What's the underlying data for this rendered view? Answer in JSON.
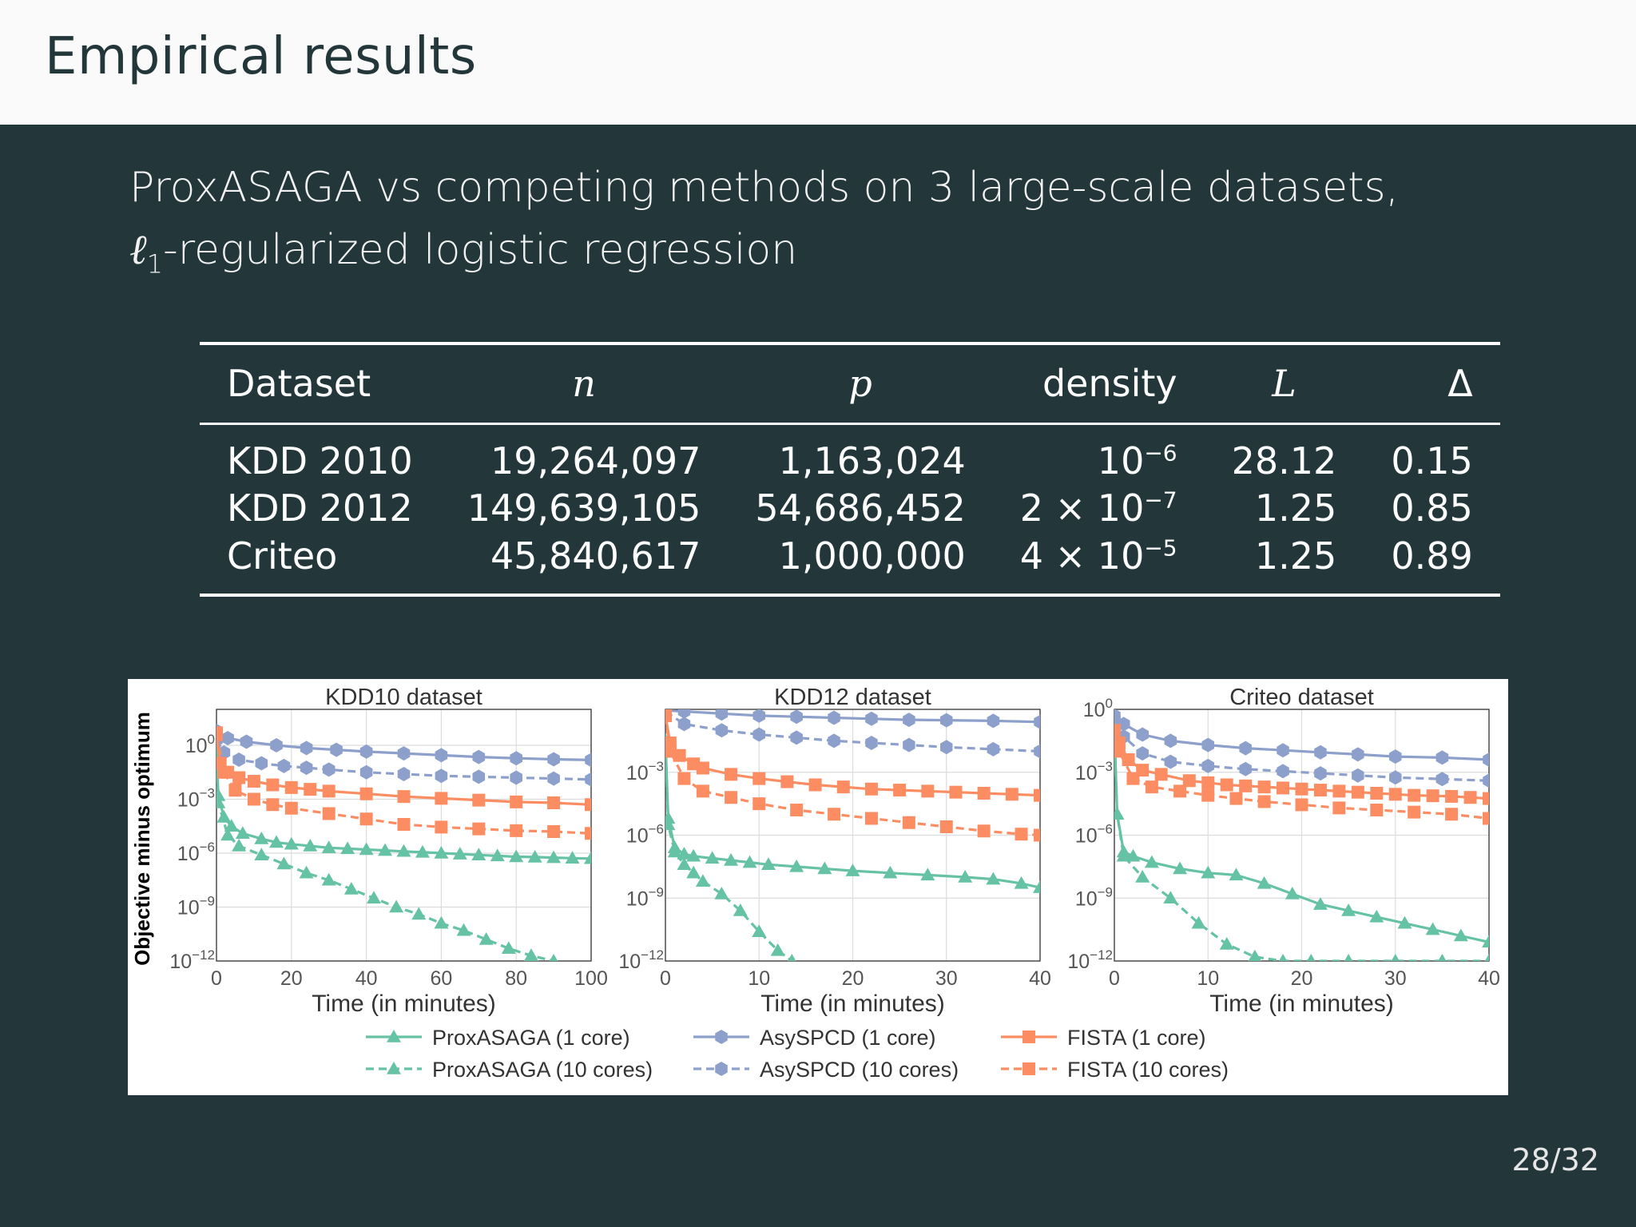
{
  "slide": {
    "title": "Empirical results",
    "subtitle_line1": "ProxASAGA vs competing methods on 3 large-scale datasets,",
    "subtitle_ell": "ℓ",
    "subtitle_sub": "1",
    "subtitle_line2_rest": "-regularized logistic regression",
    "page_number": "28/32"
  },
  "table": {
    "headers": [
      "Dataset",
      "n",
      "p",
      "density",
      "L",
      "Δ"
    ],
    "rows": [
      {
        "dataset": "KDD 2010",
        "n": "19,264,097",
        "p": "1,163,024",
        "density_base": "10",
        "density_exp": "−6",
        "L": "28.12",
        "delta": "0.15"
      },
      {
        "dataset": "KDD 2012",
        "n": "149,639,105",
        "p": "54,686,452",
        "density_base": "2 × 10",
        "density_exp": "−7",
        "L": "1.25",
        "delta": "0.85"
      },
      {
        "dataset": "Criteo",
        "n": "45,840,617",
        "p": "1,000,000",
        "density_base": "4 × 10",
        "density_exp": "−5",
        "L": "1.25",
        "delta": "0.89"
      }
    ]
  },
  "chart_data": [
    {
      "type": "line",
      "title": "KDD10 dataset",
      "xlabel": "Time (in minutes)",
      "ylabel": "Objective minus optimum",
      "xlim": [
        0,
        100
      ],
      "x_ticks": [
        "0",
        "20",
        "40",
        "60",
        "80",
        "100"
      ],
      "ylim_log10": [
        -12,
        2
      ],
      "y_scale": "log",
      "y_ticks": [
        {
          "base": "10",
          "exp": "0",
          "v": 0
        },
        {
          "base": "10",
          "exp": "−3",
          "v": -3
        },
        {
          "base": "10",
          "exp": "−6",
          "v": -6
        },
        {
          "base": "10",
          "exp": "−9",
          "v": -9
        },
        {
          "base": "10",
          "exp": "−12",
          "v": -12
        }
      ],
      "grid": true,
      "series": [
        {
          "name": "ProxASAGA (1 core)",
          "color": "#66c2a5",
          "dash": false,
          "marker": "triangle",
          "x": [
            0,
            0.5,
            2,
            4,
            7,
            12,
            16,
            20,
            25,
            30,
            35,
            40,
            45,
            50,
            55,
            60,
            65,
            70,
            75,
            80,
            85,
            90,
            95,
            100
          ],
          "log10_y": [
            -0.2,
            -2.8,
            -4.0,
            -4.5,
            -4.9,
            -5.2,
            -5.4,
            -5.5,
            -5.6,
            -5.7,
            -5.75,
            -5.8,
            -5.85,
            -5.9,
            -5.95,
            -6.0,
            -6.05,
            -6.1,
            -6.15,
            -6.2,
            -6.22,
            -6.25,
            -6.28,
            -6.3
          ]
        },
        {
          "name": "ProxASAGA (10 cores)",
          "color": "#66c2a5",
          "dash": true,
          "marker": "triangle",
          "x": [
            0,
            0.5,
            3,
            6,
            12,
            18,
            24,
            30,
            36,
            42,
            48,
            54,
            60,
            66,
            72,
            78,
            84,
            90
          ],
          "log10_y": [
            -0.2,
            -3.2,
            -5.0,
            -5.6,
            -6.1,
            -6.6,
            -7.1,
            -7.5,
            -8.0,
            -8.5,
            -9.0,
            -9.4,
            -9.9,
            -10.3,
            -10.8,
            -11.3,
            -11.7,
            -12.0
          ]
        },
        {
          "name": "AsySPCD (1 core)",
          "color": "#8da0cb",
          "dash": false,
          "marker": "hexagon",
          "x": [
            0,
            3,
            8,
            16,
            24,
            32,
            40,
            50,
            60,
            70,
            80,
            90,
            100
          ],
          "log10_y": [
            0.8,
            0.4,
            0.2,
            0.0,
            -0.15,
            -0.25,
            -0.35,
            -0.45,
            -0.55,
            -0.65,
            -0.72,
            -0.78,
            -0.82
          ]
        },
        {
          "name": "AsySPCD (10 cores)",
          "color": "#8da0cb",
          "dash": true,
          "marker": "hexagon",
          "x": [
            0,
            2,
            6,
            12,
            18,
            24,
            30,
            40,
            50,
            60,
            70,
            80,
            90,
            100
          ],
          "log10_y": [
            0.3,
            -0.4,
            -0.8,
            -1.0,
            -1.15,
            -1.25,
            -1.35,
            -1.5,
            -1.6,
            -1.7,
            -1.75,
            -1.8,
            -1.85,
            -1.9
          ]
        },
        {
          "name": "FISTA (1 core)",
          "color": "#fc8d62",
          "dash": false,
          "marker": "square",
          "x": [
            0,
            1,
            3,
            6,
            10,
            15,
            20,
            25,
            30,
            40,
            50,
            60,
            70,
            80,
            90,
            100
          ],
          "log10_y": [
            0.7,
            -1.0,
            -1.5,
            -1.8,
            -2.0,
            -2.2,
            -2.35,
            -2.45,
            -2.55,
            -2.7,
            -2.85,
            -2.95,
            -3.05,
            -3.15,
            -3.2,
            -3.3
          ]
        },
        {
          "name": "FISTA (10 cores)",
          "color": "#fc8d62",
          "dash": true,
          "marker": "square",
          "x": [
            0,
            2,
            5,
            10,
            15,
            20,
            30,
            40,
            50,
            60,
            70,
            80,
            90,
            100
          ],
          "log10_y": [
            0.6,
            -1.5,
            -2.5,
            -3.0,
            -3.3,
            -3.5,
            -3.8,
            -4.1,
            -4.4,
            -4.55,
            -4.65,
            -4.75,
            -4.8,
            -4.9
          ]
        }
      ]
    },
    {
      "type": "line",
      "title": "KDD12 dataset",
      "xlabel": "Time (in minutes)",
      "xlim": [
        0,
        40
      ],
      "x_ticks": [
        "0",
        "10",
        "20",
        "30",
        "40"
      ],
      "ylim_log10": [
        -12,
        0
      ],
      "y_scale": "log",
      "y_ticks": [
        {
          "base": "10",
          "exp": "−3",
          "v": -3
        },
        {
          "base": "10",
          "exp": "−6",
          "v": -6
        },
        {
          "base": "10",
          "exp": "−9",
          "v": -9
        },
        {
          "base": "10",
          "exp": "−12",
          "v": -12
        }
      ],
      "grid": true,
      "series": [
        {
          "name": "ProxASAGA (1 core)",
          "color": "#66c2a5",
          "dash": false,
          "marker": "triangle",
          "x": [
            0,
            0.3,
            1,
            2,
            3,
            5,
            7,
            9,
            11,
            14,
            17,
            20,
            24,
            28,
            32,
            35,
            38,
            40
          ],
          "log10_y": [
            -1.5,
            -5.2,
            -6.6,
            -6.9,
            -7.0,
            -7.1,
            -7.2,
            -7.3,
            -7.4,
            -7.5,
            -7.6,
            -7.7,
            -7.8,
            -7.9,
            -8.0,
            -8.1,
            -8.3,
            -8.5
          ]
        },
        {
          "name": "ProxASAGA (10 cores)",
          "color": "#66c2a5",
          "dash": true,
          "marker": "triangle",
          "x": [
            0,
            0.3,
            1,
            2,
            3,
            4,
            6,
            8,
            10,
            12,
            13.5
          ],
          "log10_y": [
            -1.5,
            -5.5,
            -6.8,
            -7.4,
            -7.8,
            -8.2,
            -8.8,
            -9.6,
            -10.6,
            -11.5,
            -12.0
          ]
        },
        {
          "name": "AsySPCD (1 core)",
          "color": "#8da0cb",
          "dash": false,
          "marker": "hexagon",
          "x": [
            0,
            2,
            6,
            10,
            14,
            18,
            22,
            26,
            30,
            35,
            40
          ],
          "log10_y": [
            -0.05,
            -0.1,
            -0.2,
            -0.3,
            -0.35,
            -0.4,
            -0.45,
            -0.5,
            -0.52,
            -0.55,
            -0.6
          ]
        },
        {
          "name": "AsySPCD (10 cores)",
          "color": "#8da0cb",
          "dash": true,
          "marker": "hexagon",
          "x": [
            0,
            2,
            6,
            10,
            14,
            18,
            22,
            26,
            30,
            35,
            40
          ],
          "log10_y": [
            -0.1,
            -0.7,
            -1.0,
            -1.2,
            -1.35,
            -1.5,
            -1.6,
            -1.7,
            -1.8,
            -1.9,
            -2.0
          ]
        },
        {
          "name": "FISTA (1 core)",
          "color": "#fc8d62",
          "dash": false,
          "marker": "square",
          "x": [
            0,
            0.5,
            1.5,
            3,
            4,
            7,
            10,
            13,
            16,
            19,
            22,
            25,
            28,
            31,
            34,
            37,
            40
          ],
          "log10_y": [
            -0.3,
            -1.6,
            -2.2,
            -2.6,
            -2.8,
            -3.1,
            -3.3,
            -3.45,
            -3.6,
            -3.7,
            -3.8,
            -3.85,
            -3.9,
            -3.95,
            -4.0,
            -4.05,
            -4.1
          ]
        },
        {
          "name": "FISTA (10 cores)",
          "color": "#fc8d62",
          "dash": true,
          "marker": "square",
          "x": [
            0,
            0.5,
            2,
            4,
            7,
            10,
            14,
            18,
            22,
            26,
            30,
            34,
            38,
            40
          ],
          "log10_y": [
            -0.3,
            -2.0,
            -3.3,
            -3.9,
            -4.2,
            -4.5,
            -4.8,
            -5.0,
            -5.2,
            -5.4,
            -5.6,
            -5.8,
            -5.95,
            -6.0
          ]
        }
      ]
    },
    {
      "type": "line",
      "title": "Criteo dataset",
      "xlabel": "Time (in minutes)",
      "xlim": [
        0,
        40
      ],
      "x_ticks": [
        "0",
        "10",
        "20",
        "30",
        "40"
      ],
      "ylim_log10": [
        -12,
        0
      ],
      "y_scale": "log",
      "y_ticks": [
        {
          "base": "10",
          "exp": "0",
          "v": 0
        },
        {
          "base": "10",
          "exp": "−3",
          "v": -3
        },
        {
          "base": "10",
          "exp": "−6",
          "v": -6
        },
        {
          "base": "10",
          "exp": "−9",
          "v": -9
        },
        {
          "base": "10",
          "exp": "−12",
          "v": -12
        }
      ],
      "grid": true,
      "series": [
        {
          "name": "ProxASAGA (1 core)",
          "color": "#66c2a5",
          "dash": false,
          "marker": "triangle",
          "x": [
            0,
            0.3,
            1,
            2,
            4,
            7,
            10,
            13,
            16,
            19,
            22,
            25,
            28,
            31,
            34,
            37,
            40
          ],
          "log10_y": [
            -1.0,
            -5.0,
            -6.8,
            -7.0,
            -7.3,
            -7.6,
            -7.8,
            -7.9,
            -8.3,
            -8.8,
            -9.3,
            -9.6,
            -9.9,
            -10.2,
            -10.5,
            -10.8,
            -11.1
          ]
        },
        {
          "name": "ProxASAGA (10 cores)",
          "color": "#66c2a5",
          "dash": true,
          "marker": "triangle",
          "x": [
            0,
            0.3,
            1,
            3,
            6,
            9,
            12,
            15,
            18,
            21,
            25,
            30,
            35,
            40
          ],
          "log10_y": [
            -1.0,
            -5.0,
            -7.0,
            -8.0,
            -9.0,
            -10.2,
            -11.2,
            -11.8,
            -12.0,
            -12.0,
            -12.0,
            -12.0,
            -12.0,
            -12.0
          ]
        },
        {
          "name": "AsySPCD (1 core)",
          "color": "#8da0cb",
          "dash": false,
          "marker": "hexagon",
          "x": [
            0,
            1,
            3,
            6,
            10,
            14,
            18,
            22,
            26,
            30,
            35,
            40
          ],
          "log10_y": [
            -0.3,
            -0.7,
            -1.2,
            -1.5,
            -1.7,
            -1.85,
            -1.95,
            -2.05,
            -2.15,
            -2.25,
            -2.3,
            -2.4
          ]
        },
        {
          "name": "AsySPCD (10 cores)",
          "color": "#8da0cb",
          "dash": true,
          "marker": "hexagon",
          "x": [
            0,
            1,
            3,
            6,
            10,
            14,
            18,
            22,
            26,
            30,
            35,
            40
          ],
          "log10_y": [
            -0.5,
            -1.3,
            -2.1,
            -2.5,
            -2.7,
            -2.85,
            -2.95,
            -3.05,
            -3.15,
            -3.25,
            -3.32,
            -3.4
          ]
        },
        {
          "name": "FISTA (1 core)",
          "color": "#fc8d62",
          "dash": false,
          "marker": "square",
          "x": [
            0,
            0.5,
            1.5,
            3,
            5,
            8,
            10,
            12,
            14,
            16,
            18,
            20,
            22,
            24,
            26,
            28,
            30,
            32,
            34,
            36,
            38,
            40
          ],
          "log10_y": [
            -1.0,
            -1.6,
            -2.4,
            -2.9,
            -3.1,
            -3.4,
            -3.5,
            -3.6,
            -3.65,
            -3.7,
            -3.75,
            -3.8,
            -3.85,
            -3.9,
            -3.95,
            -4.0,
            -4.05,
            -4.1,
            -4.12,
            -4.15,
            -4.2,
            -4.25
          ]
        },
        {
          "name": "FISTA (10 cores)",
          "color": "#fc8d62",
          "dash": true,
          "marker": "square",
          "x": [
            0,
            0.5,
            2,
            4,
            7,
            10,
            13,
            16,
            20,
            24,
            28,
            32,
            36,
            40
          ],
          "log10_y": [
            -1.0,
            -2.0,
            -3.3,
            -3.7,
            -3.9,
            -4.1,
            -4.25,
            -4.4,
            -4.55,
            -4.7,
            -4.8,
            -4.9,
            -5.0,
            -5.2
          ]
        }
      ]
    }
  ],
  "legend": [
    {
      "label": "ProxASAGA (1 core)",
      "color": "#66c2a5",
      "dash": false,
      "marker": "triangle"
    },
    {
      "label": "ProxASAGA (10 cores)",
      "color": "#66c2a5",
      "dash": true,
      "marker": "triangle"
    },
    {
      "label": "AsySPCD (1 core)",
      "color": "#8da0cb",
      "dash": false,
      "marker": "hexagon"
    },
    {
      "label": "AsySPCD (10 cores)",
      "color": "#8da0cb",
      "dash": true,
      "marker": "hexagon"
    },
    {
      "label": "FISTA (1 core)",
      "color": "#fc8d62",
      "dash": false,
      "marker": "square"
    },
    {
      "label": "FISTA (10 cores)",
      "color": "#fc8d62",
      "dash": true,
      "marker": "square"
    }
  ]
}
